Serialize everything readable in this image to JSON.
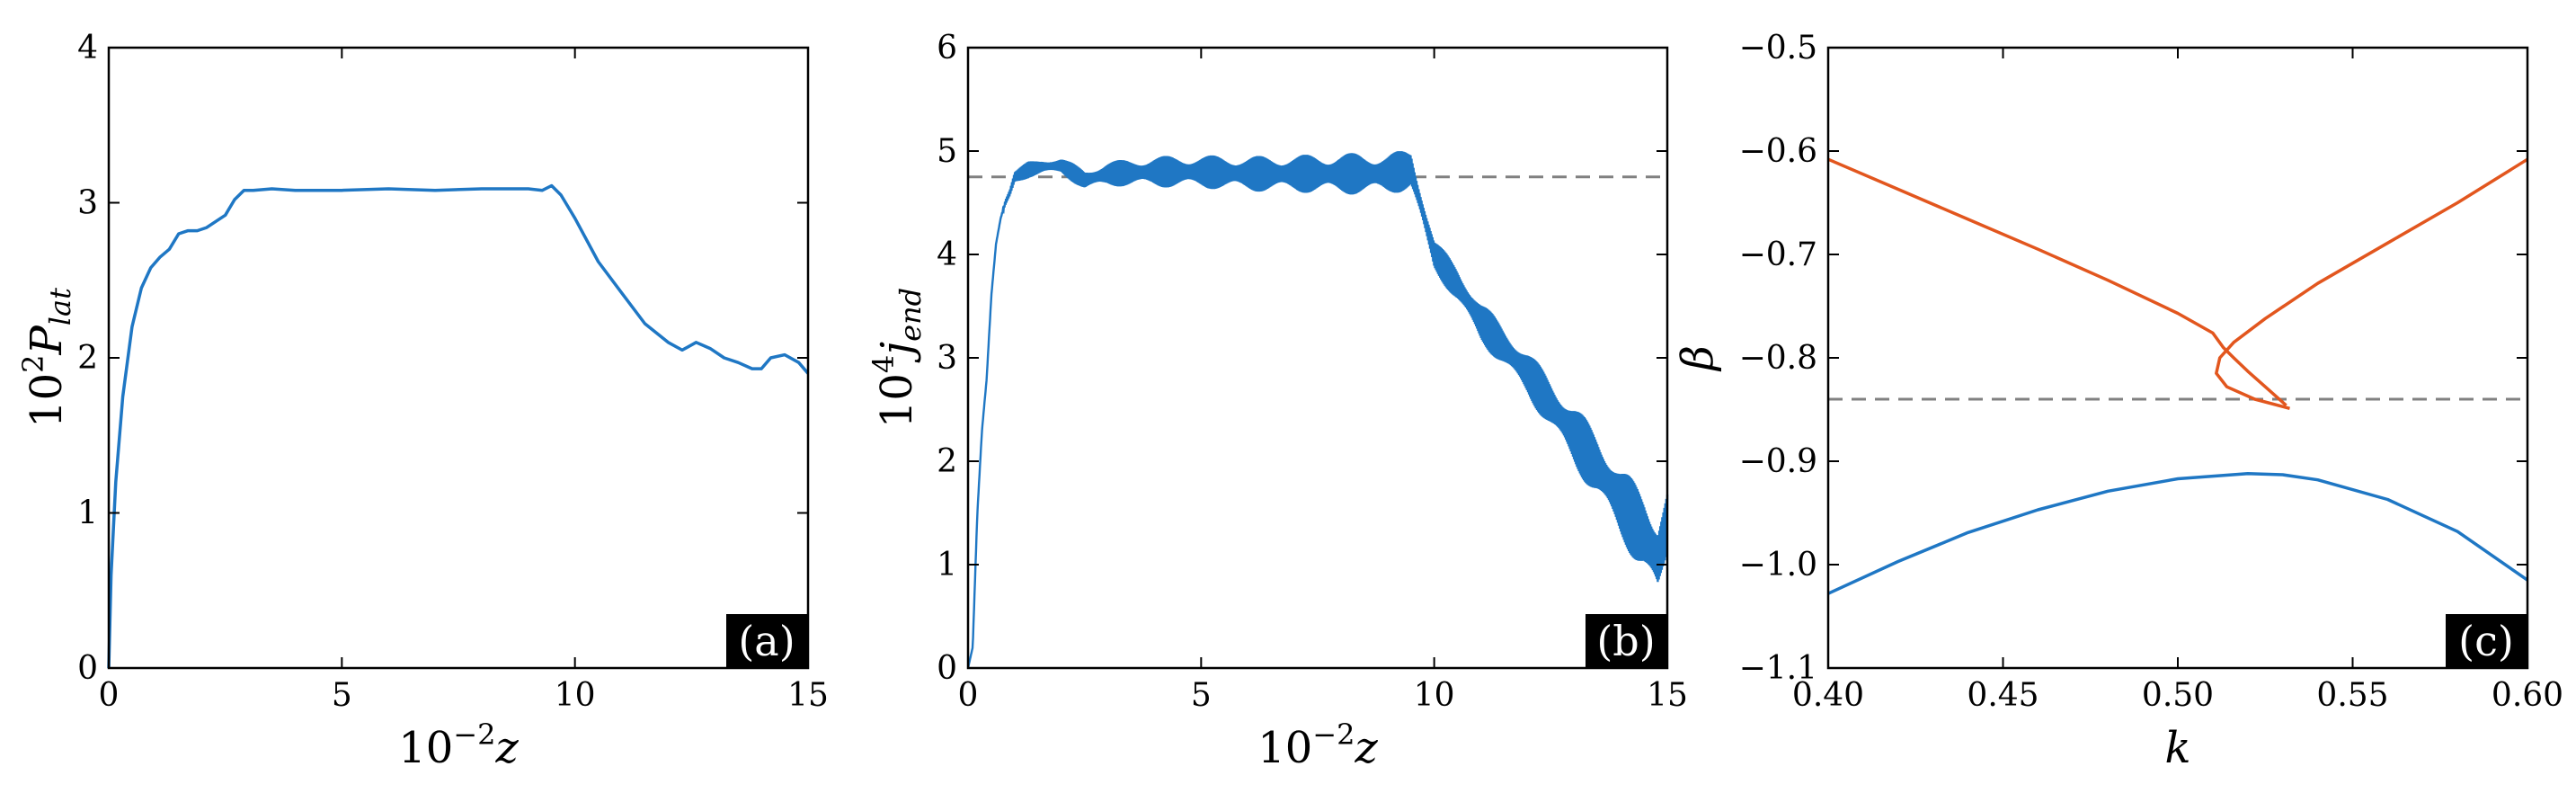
{
  "colors": {
    "blue": "#1f77c4",
    "orange": "#e2561e",
    "dash": "#808080"
  },
  "chart_data": [
    {
      "type": "line",
      "panel_label": "(a)",
      "xlabel_base": "10",
      "xlabel_exp": "−2",
      "xlabel_var": "z",
      "ylabel_base": "10",
      "ylabel_exp": "2",
      "ylabel_var": "P",
      "ylabel_sub": "lat",
      "xlim": [
        0,
        15
      ],
      "ylim": [
        0,
        4
      ],
      "xticks": [
        0,
        5,
        10,
        15
      ],
      "xtick_labels": [
        "0",
        "5",
        "10",
        "15"
      ],
      "yticks": [
        0,
        1,
        2,
        3,
        4
      ],
      "ytick_labels": [
        "0",
        "1",
        "2",
        "3",
        "4"
      ],
      "series": [
        {
          "color": "#1f77c4",
          "x": [
            0,
            0.05,
            0.15,
            0.3,
            0.5,
            0.7,
            0.9,
            1.1,
            1.3,
            1.5,
            1.7,
            1.9,
            2.1,
            2.3,
            2.5,
            2.7,
            2.9,
            3.1,
            3.5,
            4,
            5,
            6,
            7,
            8,
            9,
            9.3,
            9.5,
            9.7,
            10,
            10.5,
            11,
            11.5,
            12,
            12.3,
            12.6,
            12.9,
            13.2,
            13.5,
            13.8,
            14,
            14.2,
            14.5,
            14.8,
            15
          ],
          "y": [
            0,
            0.6,
            1.2,
            1.75,
            2.2,
            2.45,
            2.58,
            2.65,
            2.7,
            2.8,
            2.82,
            2.82,
            2.84,
            2.88,
            2.92,
            3.02,
            3.08,
            3.08,
            3.09,
            3.08,
            3.08,
            3.09,
            3.08,
            3.09,
            3.09,
            3.08,
            3.11,
            3.05,
            2.9,
            2.62,
            2.42,
            2.22,
            2.1,
            2.05,
            2.1,
            2.06,
            2.0,
            1.97,
            1.93,
            1.93,
            2.0,
            2.02,
            1.97,
            1.9
          ]
        }
      ]
    },
    {
      "type": "line",
      "panel_label": "(b)",
      "xlabel_base": "10",
      "xlabel_exp": "−2",
      "xlabel_var": "z",
      "ylabel_base": "10",
      "ylabel_exp": "4",
      "ylabel_var": "j",
      "ylabel_sub": "end",
      "xlim": [
        0,
        15
      ],
      "ylim": [
        0,
        6
      ],
      "xticks": [
        0,
        5,
        10,
        15
      ],
      "xtick_labels": [
        "0",
        "5",
        "10",
        "15"
      ],
      "yticks": [
        0,
        1,
        2,
        3,
        4,
        5,
        6
      ],
      "ytick_labels": [
        "0",
        "1",
        "2",
        "3",
        "4",
        "5",
        "6"
      ],
      "reference_line_y": 4.75,
      "series": [
        {
          "color": "#1f77c4",
          "x": [
            0,
            0.1,
            0.2,
            0.3,
            0.4,
            0.5,
            0.6,
            0.7,
            0.8,
            0.9,
            1,
            1.3,
            1.6,
            2,
            2.5,
            3,
            4,
            5,
            6,
            7,
            8,
            9,
            9.5,
            9.7,
            10,
            10.5,
            11,
            11.5,
            12,
            12.5,
            13,
            13.5,
            14,
            14.5,
            14.8,
            15
          ],
          "y": [
            0,
            0.2,
            1.5,
            2.3,
            2.8,
            3.6,
            4.1,
            4.35,
            4.5,
            4.6,
            4.75,
            4.82,
            4.85,
            4.86,
            4.72,
            4.78,
            4.8,
            4.8,
            4.78,
            4.78,
            4.78,
            4.78,
            4.82,
            4.5,
            4.0,
            3.7,
            3.35,
            3.1,
            2.85,
            2.55,
            2.25,
            1.95,
            1.6,
            1.3,
            1.05,
            1.4
          ],
          "amplitude": [
            0,
            0,
            0,
            0,
            0,
            0,
            0,
            0,
            0.05,
            0.05,
            0.06,
            0.08,
            0.08,
            0.08,
            0.1,
            0.12,
            0.15,
            0.16,
            0.17,
            0.18,
            0.2,
            0.2,
            0.2,
            0.15,
            0.15,
            0.18,
            0.2,
            0.2,
            0.22,
            0.25,
            0.3,
            0.32,
            0.35,
            0.4,
            0.45,
            0.35
          ]
        }
      ]
    },
    {
      "type": "line",
      "panel_label": "(c)",
      "xlabel_var": "k",
      "ylabel_var": "β",
      "xlim": [
        0.4,
        0.6
      ],
      "ylim": [
        -1.1,
        -0.5
      ],
      "xticks": [
        0.4,
        0.45,
        0.5,
        0.55,
        0.6
      ],
      "xtick_labels": [
        "0.40",
        "0.45",
        "0.50",
        "0.55",
        "0.60"
      ],
      "yticks": [
        -1.1,
        -1.0,
        -0.9,
        -0.8,
        -0.7,
        -0.6,
        -0.5
      ],
      "ytick_labels": [
        "−1.1",
        "−1.0",
        "−0.9",
        "−0.8",
        "−0.7",
        "−0.6",
        "−0.5"
      ],
      "reference_line_y": -0.84,
      "series": [
        {
          "color": "#e2561e",
          "x": [
            0.4,
            0.42,
            0.44,
            0.46,
            0.48,
            0.5,
            0.51,
            0.513,
            0.516,
            0.52,
            0.525,
            0.531
          ],
          "y": [
            -0.608,
            -0.637,
            -0.666,
            -0.695,
            -0.725,
            -0.757,
            -0.776,
            -0.79,
            -0.8,
            -0.813,
            -0.828,
            -0.846
          ]
        },
        {
          "color": "#e2561e",
          "x": [
            0.532,
            0.522,
            0.514,
            0.511,
            0.512,
            0.516,
            0.525,
            0.54,
            0.56,
            0.58,
            0.6
          ],
          "y": [
            -0.849,
            -0.84,
            -0.828,
            -0.815,
            -0.8,
            -0.785,
            -0.762,
            -0.728,
            -0.689,
            -0.65,
            -0.608
          ]
        },
        {
          "color": "#1f77c4",
          "x": [
            0.4,
            0.42,
            0.44,
            0.46,
            0.48,
            0.5,
            0.52,
            0.53,
            0.54,
            0.56,
            0.58,
            0.6
          ],
          "y": [
            -1.028,
            -0.997,
            -0.969,
            -0.947,
            -0.929,
            -0.917,
            -0.912,
            -0.913,
            -0.918,
            -0.937,
            -0.968,
            -1.015
          ]
        }
      ]
    }
  ]
}
